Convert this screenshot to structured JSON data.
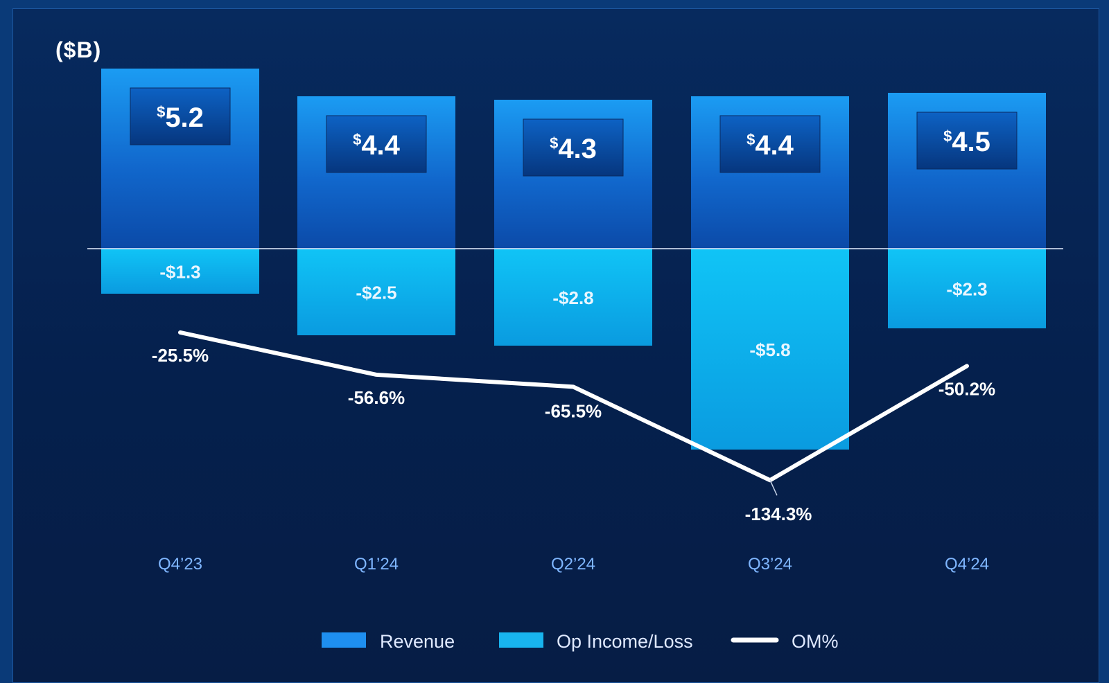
{
  "unit_label": "($B)",
  "chart_data": {
    "type": "bar",
    "categories": [
      "Q4’23",
      "Q1’24",
      "Q2’24",
      "Q3’24",
      "Q4’24"
    ],
    "series": [
      {
        "name": "Revenue",
        "values": [
          5.2,
          4.4,
          4.3,
          4.4,
          4.5
        ],
        "labels": [
          "5.2",
          "4.4",
          "4.3",
          "4.4",
          "4.5"
        ],
        "currency": "$",
        "color": "#1e8ff0"
      },
      {
        "name": "Op Income/Loss",
        "values": [
          -1.3,
          -2.5,
          -2.8,
          -5.8,
          -2.3
        ],
        "labels": [
          "-$1.3",
          "-$2.5",
          "-$2.8",
          "-$5.8",
          "-$2.3"
        ],
        "color": "#18b4ee"
      },
      {
        "name": "OM%",
        "type": "line",
        "values": [
          -25.5,
          -56.6,
          -65.5,
          -134.3,
          -50.2
        ],
        "labels": [
          "-25.5%",
          "-56.6%",
          "-65.5%",
          "-134.3%",
          "-50.2%"
        ],
        "color": "#ffffff"
      }
    ],
    "legend": {
      "position": "bottom",
      "items": [
        "Revenue",
        "Op Income/Loss",
        "OM%"
      ]
    },
    "grid": false
  }
}
